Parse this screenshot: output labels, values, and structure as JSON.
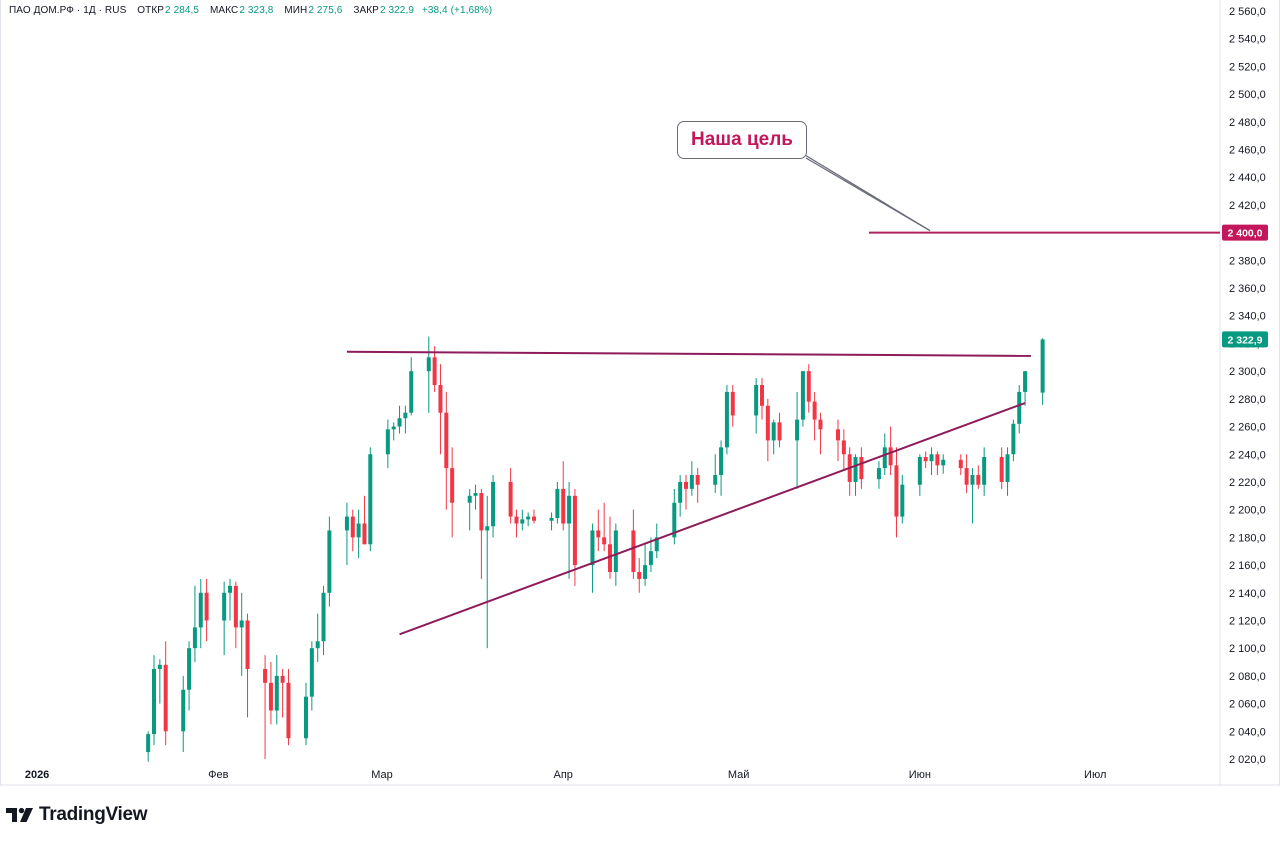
{
  "legend": {
    "symbol": "ПАО ДОМ.РФ · 1Д · RUS",
    "open_label": "ОТКР",
    "open": "2 284,5",
    "high_label": "МАКС",
    "high": "2 323,8",
    "low_label": "МИН",
    "low": "2 275,6",
    "close_label": "ЗАКР",
    "close": "2 322,9",
    "change": "+38,4 (+1,68%)"
  },
  "annotation": {
    "text": "Наша цель"
  },
  "brand": {
    "name": "TradingView",
    "icon": "tradingview-logo-icon"
  },
  "colors": {
    "up": "#089981",
    "down": "#f23645",
    "trendline": "#8e1b5a",
    "target": "#b0205e",
    "target_badge": "#c2185b",
    "last_price_badge": "#089981"
  },
  "chart_data": {
    "type": "candlestick",
    "title": "",
    "xlabel": "",
    "ylabel": "",
    "ylim": [
      2020,
      2560
    ],
    "y_ticks": [
      "2 560,0",
      "2 540,0",
      "2 520,0",
      "2 500,0",
      "2 480,0",
      "2 460,0",
      "2 440,0",
      "2 420,0",
      "2 400,0",
      "2 380,0",
      "2 360,0",
      "2 340,0",
      "2 320,0",
      "2 300,0",
      "2 280,0",
      "2 260,0",
      "2 240,0",
      "2 220,0",
      "2 200,0",
      "2 180,0",
      "2 160,0",
      "2 140,0",
      "2 120,0",
      "2 100,0",
      "2 080,0",
      "2 060,0",
      "2 040,0",
      "2 020,0"
    ],
    "x_ticks": [
      {
        "label": "2026",
        "date": "2026-01-01"
      },
      {
        "label": "Фев",
        "date": "2026-02-01"
      },
      {
        "label": "Мар",
        "date": "2026-03-01"
      },
      {
        "label": "Апр",
        "date": "2026-04-01"
      },
      {
        "label": "Май",
        "date": "2026-05-01"
      },
      {
        "label": "Июн",
        "date": "2026-06-01"
      },
      {
        "label": "Июл",
        "date": "2026-07-01"
      }
    ],
    "x_range": [
      "2025-12-26",
      "2026-07-22"
    ],
    "grid": false,
    "last_price_label": "2 322,9",
    "target_price": 2400,
    "target_label": "2 400,0",
    "resistance_line": {
      "start": [
        "2026-02-23",
        2314
      ],
      "end": [
        "2026-06-20",
        2311
      ]
    },
    "support_line": {
      "start": [
        "2026-03-04",
        2110
      ],
      "end": [
        "2026-06-19",
        2277
      ]
    },
    "candles": [
      {
        "date": "2026-01-20",
        "o": 2025,
        "h": 2040,
        "l": 2018,
        "c": 2038
      },
      {
        "date": "2026-01-21",
        "o": 2038,
        "h": 2095,
        "l": 2030,
        "c": 2085
      },
      {
        "date": "2026-01-22",
        "o": 2085,
        "h": 2092,
        "l": 2060,
        "c": 2088
      },
      {
        "date": "2026-01-23",
        "o": 2088,
        "h": 2105,
        "l": 2030,
        "c": 2040
      },
      {
        "date": "2026-01-26",
        "o": 2040,
        "h": 2080,
        "l": 2025,
        "c": 2070
      },
      {
        "date": "2026-01-27",
        "o": 2070,
        "h": 2105,
        "l": 2055,
        "c": 2100
      },
      {
        "date": "2026-01-28",
        "o": 2100,
        "h": 2145,
        "l": 2090,
        "c": 2115
      },
      {
        "date": "2026-01-29",
        "o": 2115,
        "h": 2150,
        "l": 2100,
        "c": 2140
      },
      {
        "date": "2026-01-30",
        "o": 2140,
        "h": 2150,
        "l": 2105,
        "c": 2120
      },
      {
        "date": "2026-02-02",
        "o": 2120,
        "h": 2148,
        "l": 2095,
        "c": 2140
      },
      {
        "date": "2026-02-03",
        "o": 2140,
        "h": 2150,
        "l": 2120,
        "c": 2145
      },
      {
        "date": "2026-02-04",
        "o": 2145,
        "h": 2148,
        "l": 2100,
        "c": 2115
      },
      {
        "date": "2026-02-05",
        "o": 2115,
        "h": 2140,
        "l": 2080,
        "c": 2120
      },
      {
        "date": "2026-02-06",
        "o": 2120,
        "h": 2125,
        "l": 2050,
        "c": 2085
      },
      {
        "date": "2026-02-09",
        "o": 2085,
        "h": 2095,
        "l": 2020,
        "c": 2075
      },
      {
        "date": "2026-02-10",
        "o": 2075,
        "h": 2090,
        "l": 2045,
        "c": 2055
      },
      {
        "date": "2026-02-11",
        "o": 2055,
        "h": 2095,
        "l": 2045,
        "c": 2080
      },
      {
        "date": "2026-02-12",
        "o": 2080,
        "h": 2085,
        "l": 2050,
        "c": 2075
      },
      {
        "date": "2026-02-13",
        "o": 2075,
        "h": 2085,
        "l": 2030,
        "c": 2035
      },
      {
        "date": "2026-02-16",
        "o": 2035,
        "h": 2075,
        "l": 2030,
        "c": 2065
      },
      {
        "date": "2026-02-17",
        "o": 2065,
        "h": 2105,
        "l": 2055,
        "c": 2100
      },
      {
        "date": "2026-02-18",
        "o": 2100,
        "h": 2125,
        "l": 2090,
        "c": 2105
      },
      {
        "date": "2026-02-19",
        "o": 2105,
        "h": 2145,
        "l": 2095,
        "c": 2140
      },
      {
        "date": "2026-02-20",
        "o": 2140,
        "h": 2195,
        "l": 2130,
        "c": 2185
      },
      {
        "date": "2026-02-23",
        "o": 2185,
        "h": 2205,
        "l": 2160,
        "c": 2195
      },
      {
        "date": "2026-02-24",
        "o": 2195,
        "h": 2200,
        "l": 2170,
        "c": 2180
      },
      {
        "date": "2026-02-25",
        "o": 2180,
        "h": 2200,
        "l": 2165,
        "c": 2190
      },
      {
        "date": "2026-02-26",
        "o": 2190,
        "h": 2210,
        "l": 2175,
        "c": 2175
      },
      {
        "date": "2026-02-27",
        "o": 2175,
        "h": 2245,
        "l": 2170,
        "c": 2240
      },
      {
        "date": "2026-03-02",
        "o": 2240,
        "h": 2265,
        "l": 2230,
        "c": 2258
      },
      {
        "date": "2026-03-03",
        "o": 2258,
        "h": 2263,
        "l": 2250,
        "c": 2260
      },
      {
        "date": "2026-03-04",
        "o": 2260,
        "h": 2275,
        "l": 2255,
        "c": 2266
      },
      {
        "date": "2026-03-05",
        "o": 2266,
        "h": 2275,
        "l": 2255,
        "c": 2270
      },
      {
        "date": "2026-03-06",
        "o": 2270,
        "h": 2310,
        "l": 2268,
        "c": 2300
      },
      {
        "date": "2026-03-09",
        "o": 2300,
        "h": 2325,
        "l": 2270,
        "c": 2310
      },
      {
        "date": "2026-03-10",
        "o": 2310,
        "h": 2318,
        "l": 2285,
        "c": 2290
      },
      {
        "date": "2026-03-11",
        "o": 2290,
        "h": 2305,
        "l": 2240,
        "c": 2270
      },
      {
        "date": "2026-03-12",
        "o": 2270,
        "h": 2285,
        "l": 2200,
        "c": 2230
      },
      {
        "date": "2026-03-13",
        "o": 2230,
        "h": 2245,
        "l": 2180,
        "c": 2205
      },
      {
        "date": "2026-03-16",
        "o": 2205,
        "h": 2215,
        "l": 2185,
        "c": 2210
      },
      {
        "date": "2026-03-17",
        "o": 2210,
        "h": 2218,
        "l": 2200,
        "c": 2212
      },
      {
        "date": "2026-03-18",
        "o": 2212,
        "h": 2215,
        "l": 2150,
        "c": 2185
      },
      {
        "date": "2026-03-19",
        "o": 2185,
        "h": 2210,
        "l": 2100,
        "c": 2188
      },
      {
        "date": "2026-03-20",
        "o": 2188,
        "h": 2225,
        "l": 2180,
        "c": 2220
      },
      {
        "date": "2026-03-23",
        "o": 2220,
        "h": 2230,
        "l": 2190,
        "c": 2195
      },
      {
        "date": "2026-03-24",
        "o": 2195,
        "h": 2200,
        "l": 2180,
        "c": 2190
      },
      {
        "date": "2026-03-25",
        "o": 2190,
        "h": 2200,
        "l": 2185,
        "c": 2193
      },
      {
        "date": "2026-03-26",
        "o": 2193,
        "h": 2198,
        "l": 2188,
        "c": 2195
      },
      {
        "date": "2026-03-27",
        "o": 2195,
        "h": 2200,
        "l": 2190,
        "c": 2192
      },
      {
        "date": "2026-03-30",
        "o": 2192,
        "h": 2198,
        "l": 2185,
        "c": 2194
      },
      {
        "date": "2026-03-31",
        "o": 2194,
        "h": 2220,
        "l": 2190,
        "c": 2215
      },
      {
        "date": "2026-04-01",
        "o": 2215,
        "h": 2235,
        "l": 2185,
        "c": 2190
      },
      {
        "date": "2026-04-02",
        "o": 2190,
        "h": 2220,
        "l": 2150,
        "c": 2210
      },
      {
        "date": "2026-04-03",
        "o": 2210,
        "h": 2215,
        "l": 2145,
        "c": 2160
      },
      {
        "date": "2026-04-06",
        "o": 2160,
        "h": 2190,
        "l": 2140,
        "c": 2185
      },
      {
        "date": "2026-04-07",
        "o": 2185,
        "h": 2200,
        "l": 2170,
        "c": 2180
      },
      {
        "date": "2026-04-08",
        "o": 2180,
        "h": 2205,
        "l": 2170,
        "c": 2175
      },
      {
        "date": "2026-04-09",
        "o": 2175,
        "h": 2195,
        "l": 2150,
        "c": 2155
      },
      {
        "date": "2026-04-10",
        "o": 2155,
        "h": 2190,
        "l": 2145,
        "c": 2185
      },
      {
        "date": "2026-04-13",
        "o": 2185,
        "h": 2200,
        "l": 2150,
        "c": 2155
      },
      {
        "date": "2026-04-14",
        "o": 2155,
        "h": 2165,
        "l": 2140,
        "c": 2150
      },
      {
        "date": "2026-04-15",
        "o": 2150,
        "h": 2175,
        "l": 2145,
        "c": 2160
      },
      {
        "date": "2026-04-16",
        "o": 2160,
        "h": 2180,
        "l": 2155,
        "c": 2170
      },
      {
        "date": "2026-04-17",
        "o": 2170,
        "h": 2190,
        "l": 2165,
        "c": 2180
      },
      {
        "date": "2026-04-20",
        "o": 2180,
        "h": 2215,
        "l": 2175,
        "c": 2205
      },
      {
        "date": "2026-04-21",
        "o": 2205,
        "h": 2225,
        "l": 2195,
        "c": 2220
      },
      {
        "date": "2026-04-22",
        "o": 2220,
        "h": 2225,
        "l": 2200,
        "c": 2215
      },
      {
        "date": "2026-04-23",
        "o": 2215,
        "h": 2235,
        "l": 2210,
        "c": 2225
      },
      {
        "date": "2026-04-24",
        "o": 2225,
        "h": 2230,
        "l": 2205,
        "c": 2218
      },
      {
        "date": "2026-04-27",
        "o": 2218,
        "h": 2240,
        "l": 2212,
        "c": 2225
      },
      {
        "date": "2026-04-28",
        "o": 2225,
        "h": 2250,
        "l": 2210,
        "c": 2245
      },
      {
        "date": "2026-04-29",
        "o": 2245,
        "h": 2290,
        "l": 2240,
        "c": 2285
      },
      {
        "date": "2026-04-30",
        "o": 2285,
        "h": 2290,
        "l": 2260,
        "c": 2268
      },
      {
        "date": "2026-05-04",
        "o": 2268,
        "h": 2295,
        "l": 2255,
        "c": 2290
      },
      {
        "date": "2026-05-05",
        "o": 2290,
        "h": 2295,
        "l": 2265,
        "c": 2275
      },
      {
        "date": "2026-05-06",
        "o": 2275,
        "h": 2280,
        "l": 2235,
        "c": 2250
      },
      {
        "date": "2026-05-07",
        "o": 2250,
        "h": 2265,
        "l": 2240,
        "c": 2263
      },
      {
        "date": "2026-05-08",
        "o": 2263,
        "h": 2270,
        "l": 2245,
        "c": 2250
      },
      {
        "date": "2026-05-11",
        "o": 2250,
        "h": 2285,
        "l": 2215,
        "c": 2265
      },
      {
        "date": "2026-05-12",
        "o": 2265,
        "h": 2300,
        "l": 2260,
        "c": 2300
      },
      {
        "date": "2026-05-13",
        "o": 2300,
        "h": 2305,
        "l": 2270,
        "c": 2278
      },
      {
        "date": "2026-05-14",
        "o": 2278,
        "h": 2285,
        "l": 2250,
        "c": 2265
      },
      {
        "date": "2026-05-15",
        "o": 2265,
        "h": 2270,
        "l": 2240,
        "c": 2258
      },
      {
        "date": "2026-05-18",
        "o": 2258,
        "h": 2265,
        "l": 2235,
        "c": 2250
      },
      {
        "date": "2026-05-19",
        "o": 2250,
        "h": 2258,
        "l": 2228,
        "c": 2240
      },
      {
        "date": "2026-05-20",
        "o": 2240,
        "h": 2245,
        "l": 2210,
        "c": 2220
      },
      {
        "date": "2026-05-21",
        "o": 2220,
        "h": 2240,
        "l": 2210,
        "c": 2238
      },
      {
        "date": "2026-05-22",
        "o": 2238,
        "h": 2245,
        "l": 2215,
        "c": 2222
      },
      {
        "date": "2026-05-25",
        "o": 2222,
        "h": 2235,
        "l": 2215,
        "c": 2230
      },
      {
        "date": "2026-05-26",
        "o": 2230,
        "h": 2255,
        "l": 2225,
        "c": 2245
      },
      {
        "date": "2026-05-27",
        "o": 2245,
        "h": 2260,
        "l": 2225,
        "c": 2232
      },
      {
        "date": "2026-05-28",
        "o": 2232,
        "h": 2245,
        "l": 2180,
        "c": 2195
      },
      {
        "date": "2026-05-29",
        "o": 2195,
        "h": 2225,
        "l": 2190,
        "c": 2218
      },
      {
        "date": "2026-06-01",
        "o": 2218,
        "h": 2240,
        "l": 2210,
        "c": 2238
      },
      {
        "date": "2026-06-02",
        "o": 2238,
        "h": 2242,
        "l": 2230,
        "c": 2235
      },
      {
        "date": "2026-06-03",
        "o": 2235,
        "h": 2245,
        "l": 2225,
        "c": 2240
      },
      {
        "date": "2026-06-04",
        "o": 2240,
        "h": 2242,
        "l": 2225,
        "c": 2232
      },
      {
        "date": "2026-06-05",
        "o": 2232,
        "h": 2240,
        "l": 2226,
        "c": 2236
      },
      {
        "date": "2026-06-08",
        "o": 2236,
        "h": 2240,
        "l": 2225,
        "c": 2230
      },
      {
        "date": "2026-06-09",
        "o": 2230,
        "h": 2240,
        "l": 2212,
        "c": 2218
      },
      {
        "date": "2026-06-10",
        "o": 2218,
        "h": 2230,
        "l": 2190,
        "c": 2225
      },
      {
        "date": "2026-06-11",
        "o": 2225,
        "h": 2232,
        "l": 2215,
        "c": 2218
      },
      {
        "date": "2026-06-12",
        "o": 2218,
        "h": 2245,
        "l": 2210,
        "c": 2238
      },
      {
        "date": "2026-06-15",
        "o": 2238,
        "h": 2245,
        "l": 2215,
        "c": 2220
      },
      {
        "date": "2026-06-16",
        "o": 2220,
        "h": 2245,
        "l": 2210,
        "c": 2240
      },
      {
        "date": "2026-06-17",
        "o": 2240,
        "h": 2265,
        "l": 2235,
        "c": 2262
      },
      {
        "date": "2026-06-18",
        "o": 2262,
        "h": 2290,
        "l": 2255,
        "c": 2285
      },
      {
        "date": "2026-06-19",
        "o": 2285,
        "h": 2300,
        "l": 2275,
        "c": 2300
      },
      {
        "date": "2026-06-22",
        "o": 2284.5,
        "h": 2323.8,
        "l": 2275.6,
        "c": 2322.9
      }
    ]
  }
}
